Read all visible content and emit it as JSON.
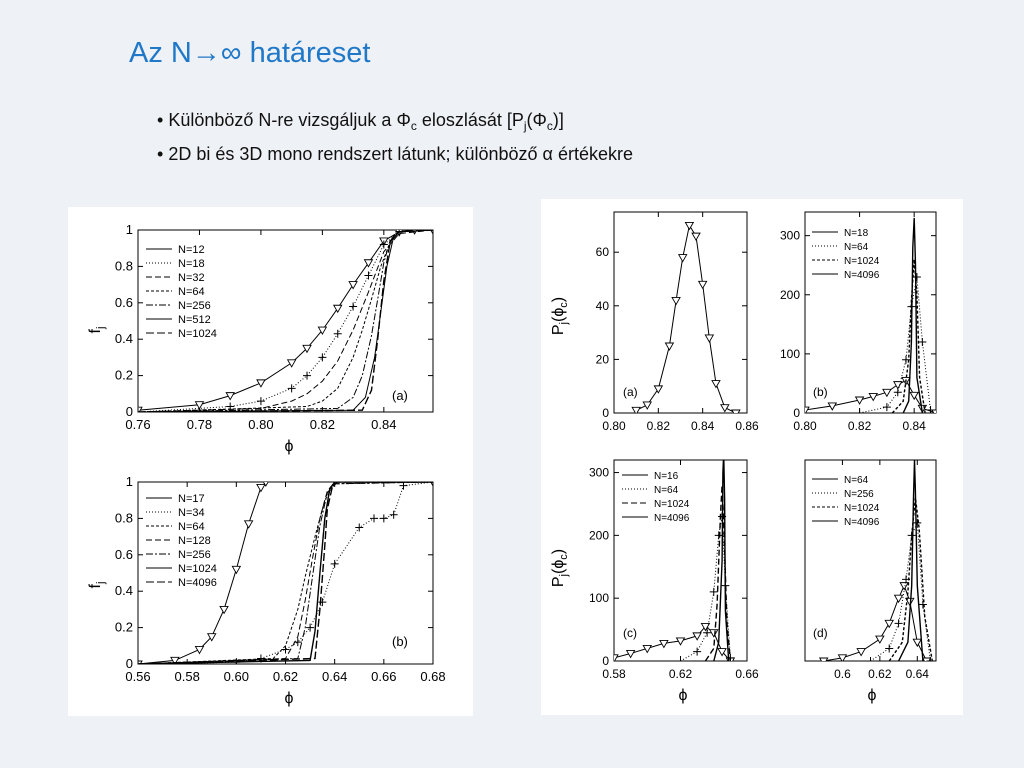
{
  "slide": {
    "title": "Az N→∞ határeset",
    "bullet1": {
      "marker": "•",
      "text_a": "Különböző N-re vizsgáljuk a Φ",
      "sub1": "c",
      "text_b": " eloszlását [P",
      "sub2": "j",
      "text_c": "(Φ",
      "sub3": "c",
      "text_d": ")]"
    },
    "bullet2": {
      "marker": "•",
      "text": "2D bi és 3D mono rendszert látunk; különböző  α értékekre"
    }
  },
  "chart_data": [
    {
      "type": "line",
      "panel_label": "(a)",
      "xlabel": "ϕ",
      "ylabel": "f",
      "ylabel_sub": "j",
      "xlim": [
        0.76,
        0.856
      ],
      "ylim": [
        0,
        1
      ],
      "xticks": [
        "0.76",
        "0.78",
        "0.80",
        "0.82",
        "0.84"
      ],
      "yticks": [
        "0",
        "0.2",
        "0.4",
        "0.6",
        "0.8",
        "1"
      ],
      "legend_position": "top-left",
      "series": [
        {
          "name": "N=12",
          "dash": "solid",
          "x": [
            0.76,
            0.78,
            0.79,
            0.8,
            0.81,
            0.815,
            0.82,
            0.825,
            0.83,
            0.835,
            0.84,
            0.845,
            0.85,
            0.856
          ],
          "y": [
            0.01,
            0.04,
            0.09,
            0.16,
            0.27,
            0.35,
            0.45,
            0.57,
            0.7,
            0.82,
            0.94,
            0.99,
            1.0,
            1.0
          ]
        },
        {
          "name": "N=18",
          "dash": "dotted",
          "x": [
            0.76,
            0.79,
            0.8,
            0.81,
            0.815,
            0.82,
            0.825,
            0.83,
            0.835,
            0.84,
            0.845,
            0.856
          ],
          "y": [
            0.0,
            0.03,
            0.06,
            0.13,
            0.2,
            0.3,
            0.43,
            0.58,
            0.75,
            0.92,
            0.99,
            1.0
          ]
        },
        {
          "name": "N=32",
          "dash": "6,3",
          "x": [
            0.76,
            0.8,
            0.81,
            0.815,
            0.82,
            0.825,
            0.83,
            0.835,
            0.84,
            0.845,
            0.856
          ],
          "y": [
            0.0,
            0.02,
            0.06,
            0.1,
            0.17,
            0.28,
            0.45,
            0.66,
            0.88,
            0.98,
            1.0
          ]
        },
        {
          "name": "N=64",
          "dash": "3,2",
          "x": [
            0.76,
            0.815,
            0.82,
            0.825,
            0.83,
            0.833,
            0.836,
            0.839,
            0.842,
            0.845,
            0.856
          ],
          "y": [
            0.0,
            0.03,
            0.06,
            0.13,
            0.3,
            0.45,
            0.62,
            0.8,
            0.93,
            0.99,
            1.0
          ]
        },
        {
          "name": "N=256",
          "dash": "7,2,2,2",
          "x": [
            0.76,
            0.825,
            0.83,
            0.833,
            0.836,
            0.838,
            0.84,
            0.842,
            0.845,
            0.856
          ],
          "y": [
            0.0,
            0.02,
            0.08,
            0.2,
            0.42,
            0.62,
            0.82,
            0.94,
            0.99,
            1.0
          ]
        },
        {
          "name": "N=512",
          "dash": "solid",
          "x": [
            0.76,
            0.83,
            0.834,
            0.837,
            0.839,
            0.841,
            0.843,
            0.845,
            0.856
          ],
          "y": [
            0.0,
            0.01,
            0.08,
            0.3,
            0.55,
            0.8,
            0.95,
            0.99,
            1.0
          ]
        },
        {
          "name": "N=1024",
          "dash": "8,3",
          "x": [
            0.76,
            0.833,
            0.836,
            0.838,
            0.84,
            0.842,
            0.844,
            0.856
          ],
          "y": [
            0.0,
            0.01,
            0.12,
            0.4,
            0.72,
            0.93,
            0.99,
            1.0
          ]
        }
      ]
    },
    {
      "type": "line",
      "panel_label": "(b)",
      "xlabel": "ϕ",
      "ylabel": "f",
      "ylabel_sub": "j",
      "xlim": [
        0.56,
        0.68
      ],
      "ylim": [
        0,
        1
      ],
      "xticks": [
        "0.56",
        "0.58",
        "0.60",
        "0.62",
        "0.64",
        "0.66",
        "0.68"
      ],
      "yticks": [
        "0",
        "0.2",
        "0.4",
        "0.6",
        "0.8",
        "1"
      ],
      "legend_position": "top-left",
      "series": [
        {
          "name": "N=17",
          "dash": "solid",
          "x": [
            0.56,
            0.575,
            0.585,
            0.59,
            0.595,
            0.6,
            0.605,
            0.61,
            0.612,
            0.68
          ],
          "y": [
            0.0,
            0.02,
            0.08,
            0.15,
            0.3,
            0.52,
            0.77,
            0.97,
            1.0,
            1.0
          ]
        },
        {
          "name": "N=34",
          "dash": "dotted",
          "x": [
            0.56,
            0.6,
            0.61,
            0.62,
            0.625,
            0.63,
            0.635,
            0.64,
            0.65,
            0.656,
            0.66,
            0.664,
            0.668,
            0.68
          ],
          "y": [
            0.0,
            0.01,
            0.03,
            0.08,
            0.12,
            0.2,
            0.34,
            0.55,
            0.75,
            0.8,
            0.8,
            0.82,
            0.98,
            1.0
          ]
        },
        {
          "name": "N=64",
          "dash": "3,2",
          "x": [
            0.56,
            0.615,
            0.62,
            0.625,
            0.628,
            0.632,
            0.636,
            0.64,
            0.68
          ],
          "y": [
            0.0,
            0.03,
            0.1,
            0.3,
            0.48,
            0.7,
            0.9,
            0.99,
            1.0
          ]
        },
        {
          "name": "N=128",
          "dash": "6,3",
          "x": [
            0.56,
            0.62,
            0.625,
            0.628,
            0.631,
            0.634,
            0.637,
            0.64,
            0.68
          ],
          "y": [
            0.0,
            0.03,
            0.15,
            0.35,
            0.58,
            0.8,
            0.95,
            1.0,
            1.0
          ]
        },
        {
          "name": "N=256",
          "dash": "7,2,2,2",
          "x": [
            0.56,
            0.625,
            0.628,
            0.631,
            0.634,
            0.637,
            0.64,
            0.68
          ],
          "y": [
            0.0,
            0.03,
            0.2,
            0.48,
            0.76,
            0.94,
            0.99,
            1.0
          ]
        },
        {
          "name": "N=1024",
          "dash": "solid",
          "x": [
            0.56,
            0.63,
            0.632,
            0.634,
            0.636,
            0.638,
            0.64,
            0.68
          ],
          "y": [
            0.0,
            0.02,
            0.18,
            0.5,
            0.8,
            0.96,
            1.0,
            1.0
          ]
        },
        {
          "name": "N=4096",
          "dash": "8,3",
          "x": [
            0.56,
            0.632,
            0.634,
            0.636,
            0.637,
            0.639,
            0.641,
            0.68
          ],
          "y": [
            0.0,
            0.03,
            0.3,
            0.65,
            0.85,
            0.97,
            1.0,
            1.0
          ]
        }
      ]
    },
    {
      "type": "line",
      "panel_label": "(a)",
      "xlabel": "",
      "ylabel": "P",
      "ylabel_sub": "j",
      "ylabel_tail": "(ϕ",
      "ylabel_sub2": "c",
      "ylabel_end": ")",
      "xlim": [
        0.8,
        0.86
      ],
      "ylim": [
        0,
        75
      ],
      "xticks": [
        "0.80",
        "0.82",
        "0.84",
        "0.86"
      ],
      "yticks": [
        "0",
        "20",
        "40",
        "60"
      ],
      "legend_position": "none",
      "series": [
        {
          "name": "",
          "dash": "solid",
          "x": [
            0.81,
            0.815,
            0.82,
            0.825,
            0.828,
            0.831,
            0.834,
            0.837,
            0.84,
            0.843,
            0.846,
            0.85,
            0.855
          ],
          "y": [
            1,
            3,
            9,
            25,
            42,
            58,
            70,
            66,
            48,
            28,
            11,
            2,
            0
          ]
        }
      ]
    },
    {
      "type": "line",
      "panel_label": "(b)",
      "xlabel": "",
      "ylabel": "",
      "xlim": [
        0.8,
        0.848
      ],
      "ylim": [
        0,
        340
      ],
      "xticks": [
        "0.80",
        "0.82",
        "0.84"
      ],
      "yticks": [
        "0",
        "100",
        "200",
        "300"
      ],
      "legend_position": "top-right",
      "series": [
        {
          "name": "N=18",
          "dash": "solid",
          "x": [
            0.8,
            0.81,
            0.82,
            0.825,
            0.83,
            0.834,
            0.837,
            0.84,
            0.843,
            0.848
          ],
          "y": [
            5,
            12,
            22,
            28,
            35,
            48,
            55,
            30,
            8,
            0
          ]
        },
        {
          "name": "N=64",
          "dash": "dotted",
          "x": [
            0.82,
            0.83,
            0.834,
            0.837,
            0.839,
            0.841,
            0.843,
            0.846
          ],
          "y": [
            0,
            10,
            35,
            90,
            180,
            230,
            120,
            5
          ]
        },
        {
          "name": "N=1024",
          "dash": "3,2",
          "x": [
            0.832,
            0.836,
            0.838,
            0.839,
            0.84,
            0.841,
            0.842,
            0.844
          ],
          "y": [
            0,
            20,
            90,
            190,
            260,
            200,
            60,
            0
          ]
        },
        {
          "name": "N=4096",
          "dash": "solid",
          "x": [
            0.836,
            0.838,
            0.839,
            0.8395,
            0.84,
            0.8405,
            0.841,
            0.843
          ],
          "y": [
            0,
            20,
            120,
            280,
            330,
            250,
            60,
            0
          ]
        }
      ]
    },
    {
      "type": "line",
      "panel_label": "(c)",
      "xlabel": "ϕ",
      "ylabel": "P",
      "ylabel_sub": "j",
      "ylabel_tail": "(ϕ",
      "ylabel_sub2": "c",
      "ylabel_end": ")",
      "xlim": [
        0.58,
        0.66
      ],
      "ylim": [
        0,
        320
      ],
      "xticks": [
        "0.58",
        "0.62",
        "0.66"
      ],
      "yticks": [
        "0",
        "100",
        "200",
        "300"
      ],
      "legend_position": "top-left",
      "series": [
        {
          "name": "N=16",
          "dash": "solid",
          "x": [
            0.58,
            0.59,
            0.6,
            0.61,
            0.62,
            0.63,
            0.635,
            0.64,
            0.645,
            0.65
          ],
          "y": [
            5,
            12,
            20,
            28,
            32,
            40,
            55,
            45,
            15,
            0
          ]
        },
        {
          "name": "N=64",
          "dash": "dotted",
          "x": [
            0.62,
            0.63,
            0.636,
            0.64,
            0.643,
            0.645,
            0.647,
            0.65
          ],
          "y": [
            0,
            15,
            45,
            110,
            200,
            230,
            120,
            5
          ]
        },
        {
          "name": "N=1024",
          "dash": "6,3",
          "x": [
            0.635,
            0.64,
            0.642,
            0.644,
            0.645,
            0.646,
            0.648,
            0.65
          ],
          "y": [
            0,
            20,
            90,
            230,
            280,
            220,
            60,
            0
          ]
        },
        {
          "name": "N=4096",
          "dash": "solid",
          "x": [
            0.64,
            0.643,
            0.645,
            0.6455,
            0.646,
            0.6465,
            0.647,
            0.649
          ],
          "y": [
            0,
            30,
            160,
            300,
            330,
            260,
            80,
            0
          ]
        }
      ]
    },
    {
      "type": "line",
      "panel_label": "(d)",
      "xlabel": "ϕ",
      "ylabel": "",
      "xlim": [
        0.58,
        0.65
      ],
      "ylim": [
        0,
        320
      ],
      "xticks": [
        "0.6",
        "0.62",
        "0.64"
      ],
      "yticks": [],
      "legend_position": "top-right",
      "series": [
        {
          "name": "N=64",
          "dash": "solid",
          "x": [
            0.59,
            0.6,
            0.61,
            0.62,
            0.625,
            0.63,
            0.633,
            0.636,
            0.64,
            0.645
          ],
          "y": [
            0,
            5,
            15,
            35,
            60,
            100,
            120,
            95,
            30,
            0
          ]
        },
        {
          "name": "N=256",
          "dash": "dotted",
          "x": [
            0.615,
            0.625,
            0.63,
            0.634,
            0.637,
            0.64,
            0.643,
            0.647
          ],
          "y": [
            0,
            20,
            60,
            130,
            200,
            220,
            90,
            0
          ]
        },
        {
          "name": "N=1024",
          "dash": "3,2",
          "x": [
            0.625,
            0.632,
            0.635,
            0.637,
            0.639,
            0.641,
            0.644,
            0.648
          ],
          "y": [
            0,
            30,
            110,
            200,
            260,
            210,
            70,
            0
          ]
        },
        {
          "name": "N=4096",
          "dash": "solid",
          "x": [
            0.63,
            0.635,
            0.637,
            0.638,
            0.6385,
            0.639,
            0.64,
            0.643
          ],
          "y": [
            0,
            30,
            120,
            260,
            320,
            270,
            120,
            0
          ]
        }
      ]
    }
  ]
}
